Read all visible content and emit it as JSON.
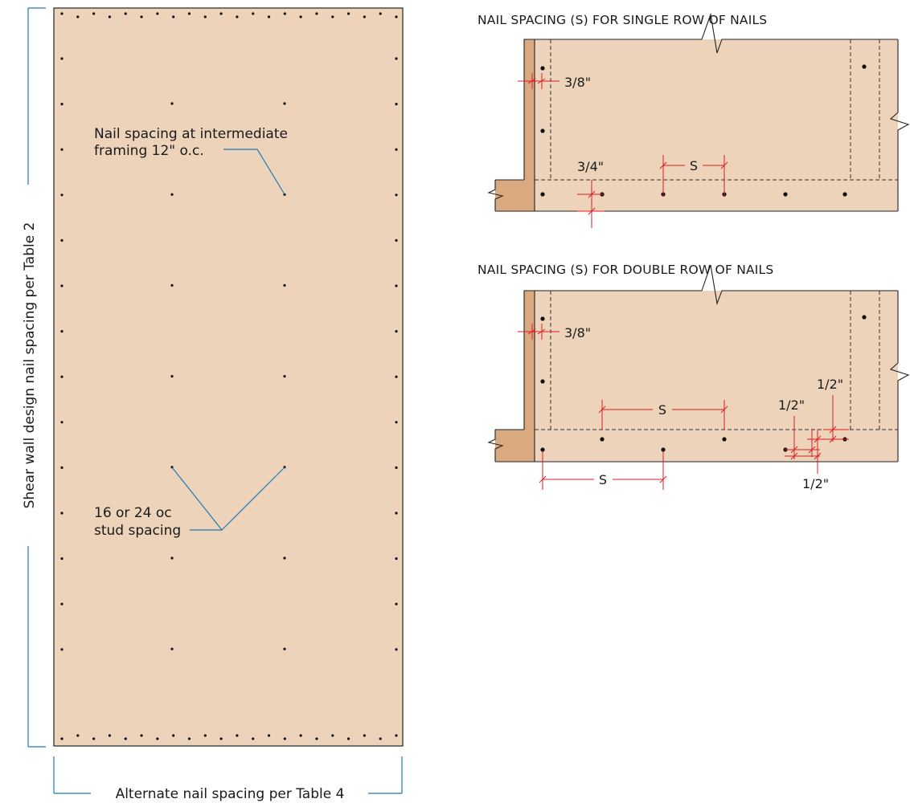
{
  "left_panel": {
    "vertical_label": "Shear wall design nail spacing per Table 2",
    "bottom_label": "Alternate nail spacing per Table 4",
    "callout_intermediate": [
      "Nail spacing at intermediate",
      "framing 12\" o.c."
    ],
    "callout_stud": [
      "16 or 24 oc",
      "stud spacing"
    ]
  },
  "single_row": {
    "title": "NAIL SPACING (S) FOR SINGLE ROW OF NAILS",
    "edge_dim": "3/8\"",
    "bottom_edge_dim": "3/4\"",
    "spacing_label": "S"
  },
  "double_row": {
    "title": "NAIL SPACING (S) FOR DOUBLE ROW OF NAILS",
    "edge_dim": "3/8\"",
    "upper_spacing_label": "S",
    "lower_spacing_label": "S",
    "half_inch_a": "1/2\"",
    "half_inch_b": "1/2\"",
    "half_inch_c": "1/2\""
  },
  "colors": {
    "panel": "#ecd3b9",
    "framing": "#d9aa80",
    "leader": "#1f78b4",
    "dimension": "#e01b24",
    "outline": "#222222"
  }
}
